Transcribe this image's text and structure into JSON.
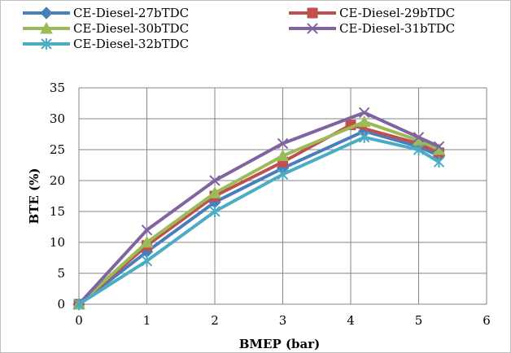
{
  "chart_data": {
    "type": "line",
    "xlabel": "BMEP (bar)",
    "ylabel": "BTE (%)",
    "xlim": [
      0,
      6
    ],
    "ylim": [
      0,
      35
    ],
    "xticks": [
      "0",
      "1",
      "2",
      "3",
      "4",
      "5",
      "6"
    ],
    "yticks": [
      "0",
      "5",
      "10",
      "15",
      "20",
      "25",
      "30",
      "35"
    ],
    "grid": true,
    "legend_position": "top",
    "series": [
      {
        "name": "CE-Diesel-27bTDC",
        "color": "#4a7ebb",
        "marker": "diamond",
        "x": [
          0,
          1,
          2,
          3,
          4.2,
          5,
          5.3
        ],
        "y": [
          0,
          8.5,
          16.5,
          22,
          28,
          25.5,
          24
        ]
      },
      {
        "name": "CE-Diesel-29bTDC",
        "color": "#c0504d",
        "marker": "square",
        "x": [
          0,
          1,
          2,
          3,
          4,
          5,
          5.3
        ],
        "y": [
          0,
          9.5,
          17.5,
          23,
          29,
          26,
          24.5
        ]
      },
      {
        "name": "CE-Diesel-30bTDC",
        "color": "#9bbb59",
        "marker": "triangle",
        "x": [
          0,
          1,
          2,
          3,
          4.2,
          5,
          5.3
        ],
        "y": [
          0,
          10,
          18,
          24,
          29.5,
          26.5,
          25
        ]
      },
      {
        "name": "CE-Diesel-31bTDC",
        "color": "#8064a2",
        "marker": "x",
        "x": [
          0,
          1,
          2,
          3,
          4.2,
          5,
          5.3
        ],
        "y": [
          0,
          12,
          20,
          26,
          31,
          27,
          25.5
        ]
      },
      {
        "name": "CE-Diesel-32bTDC",
        "color": "#4bacc6",
        "marker": "star",
        "x": [
          0,
          1,
          2,
          3,
          4.2,
          5,
          5.3
        ],
        "y": [
          0,
          7,
          15,
          21,
          27,
          25,
          23
        ]
      }
    ]
  }
}
